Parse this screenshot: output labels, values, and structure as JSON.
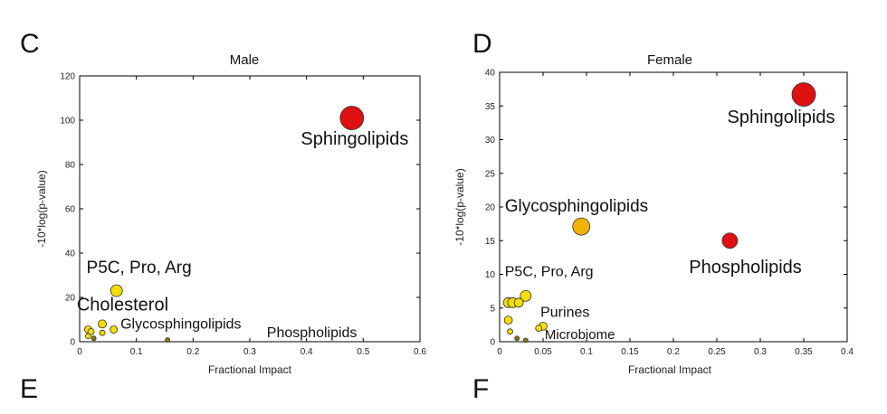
{
  "panels": [
    {
      "letter": "C",
      "next_letter": "E"
    },
    {
      "letter": "D",
      "next_letter": "F"
    }
  ],
  "colors": {
    "high": "#dd1111",
    "mid": "#f2b400",
    "low": "#f5dd00",
    "dark": "#8a7a00",
    "stroke": "#333333"
  },
  "chart_data": [
    {
      "type": "scatter",
      "title": "Male",
      "xlabel": "Fractional Impact",
      "ylabel": "-10*log(p-value)",
      "xlim": [
        0,
        0.6
      ],
      "ylim": [
        0,
        120
      ],
      "xticks": [
        0,
        0.1,
        0.2,
        0.3,
        0.4,
        0.5,
        0.6
      ],
      "yticks": [
        0,
        20,
        40,
        60,
        80,
        100,
        120
      ],
      "grid": false,
      "points": [
        {
          "x": 0.48,
          "y": 101,
          "size": 13,
          "color": "high"
        },
        {
          "x": 0.065,
          "y": 23,
          "size": 6.5,
          "color": "low"
        },
        {
          "x": 0.04,
          "y": 8,
          "size": 4.5,
          "color": "low"
        },
        {
          "x": 0.06,
          "y": 5.5,
          "size": 4,
          "color": "low"
        },
        {
          "x": 0.015,
          "y": 5.5,
          "size": 4,
          "color": "low"
        },
        {
          "x": 0.02,
          "y": 4.5,
          "size": 3.5,
          "color": "low"
        },
        {
          "x": 0.04,
          "y": 4,
          "size": 3,
          "color": "low"
        },
        {
          "x": 0.015,
          "y": 2.5,
          "size": 3,
          "color": "low"
        },
        {
          "x": 0.025,
          "y": 1.5,
          "size": 2.5,
          "color": "dark"
        },
        {
          "x": 0.155,
          "y": 0.8,
          "size": 2.5,
          "color": "dark"
        }
      ],
      "annotations": [
        {
          "text": "Sphingolipids",
          "x": 0.39,
          "y": 89,
          "size": 20
        },
        {
          "text": "P5C, Pro, Arg",
          "x": 0.012,
          "y": 31,
          "size": 19
        },
        {
          "text": "Cholesterol",
          "x": -0.005,
          "y": 14,
          "size": 20
        },
        {
          "text": "Glycosphingolipids",
          "x": 0.072,
          "y": 6,
          "size": 16
        },
        {
          "text": "Phospholipids",
          "x": 0.33,
          "y": 2,
          "size": 16
        }
      ]
    },
    {
      "type": "scatter",
      "title": "Female",
      "xlabel": "Fractional Impact",
      "ylabel": "-10*log(p-value)",
      "xlim": [
        0,
        0.4
      ],
      "ylim": [
        0,
        40
      ],
      "xticks": [
        0,
        0.05,
        0.1,
        0.15,
        0.2,
        0.25,
        0.3,
        0.35,
        0.4
      ],
      "yticks": [
        0,
        5,
        10,
        15,
        20,
        25,
        30,
        35,
        40
      ],
      "grid": false,
      "points": [
        {
          "x": 0.35,
          "y": 36.7,
          "size": 13,
          "color": "high"
        },
        {
          "x": 0.094,
          "y": 17.1,
          "size": 9.5,
          "color": "mid"
        },
        {
          "x": 0.265,
          "y": 15,
          "size": 8.5,
          "color": "high"
        },
        {
          "x": 0.03,
          "y": 6.8,
          "size": 6,
          "color": "low"
        },
        {
          "x": 0.01,
          "y": 5.8,
          "size": 5.5,
          "color": "low"
        },
        {
          "x": 0.015,
          "y": 5.8,
          "size": 5.5,
          "color": "low"
        },
        {
          "x": 0.022,
          "y": 5.8,
          "size": 5,
          "color": "low"
        },
        {
          "x": 0.01,
          "y": 3.2,
          "size": 4.5,
          "color": "low"
        },
        {
          "x": 0.05,
          "y": 2.3,
          "size": 4.5,
          "color": "low"
        },
        {
          "x": 0.045,
          "y": 2.0,
          "size": 3.5,
          "color": "low"
        },
        {
          "x": 0.012,
          "y": 1.5,
          "size": 3,
          "color": "low"
        },
        {
          "x": 0.02,
          "y": 0.5,
          "size": 2.5,
          "color": "dark"
        },
        {
          "x": 0.03,
          "y": 0.2,
          "size": 2.5,
          "color": "dark"
        }
      ],
      "annotations": [
        {
          "text": "Sphingolipids",
          "x": 0.262,
          "y": 32.5,
          "size": 20
        },
        {
          "text": "Glycosphingolipids",
          "x": 0.006,
          "y": 19.3,
          "size": 19
        },
        {
          "text": "Phospholipids",
          "x": 0.218,
          "y": 10.2,
          "size": 20
        },
        {
          "text": "P5C, Pro, Arg",
          "x": 0.006,
          "y": 9.7,
          "size": 16
        },
        {
          "text": "Purines",
          "x": 0.047,
          "y": 3.7,
          "size": 16
        },
        {
          "text": "Microbiome",
          "x": 0.052,
          "y": 0.4,
          "size": 15
        }
      ]
    }
  ]
}
